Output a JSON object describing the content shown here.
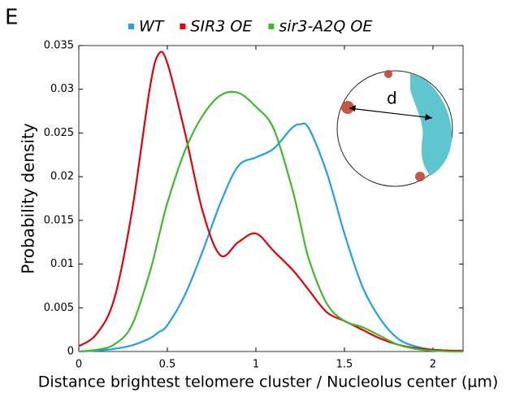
{
  "chart_data": {
    "type": "line",
    "panel_label": "E",
    "xlabel": "Distance brightest telomere cluster / Nucleolus center (µm)",
    "ylabel": "Probability density",
    "annotation": "d",
    "x": [
      0,
      0.1,
      0.2,
      0.3,
      0.4,
      0.45,
      0.5,
      0.6,
      0.7,
      0.8,
      0.9,
      1.0,
      1.1,
      1.2,
      1.25,
      1.3,
      1.4,
      1.5,
      1.6,
      1.7,
      1.8,
      1.9,
      2.0,
      2.1,
      2.17
    ],
    "series": [
      {
        "name": "WT",
        "color": "#1ea0ea",
        "values": [
          0,
          0.0001,
          0.0003,
          0.0007,
          0.0015,
          0.0022,
          0.003,
          0.0065,
          0.0115,
          0.017,
          0.0212,
          0.0222,
          0.0232,
          0.0255,
          0.026,
          0.0255,
          0.0205,
          0.0135,
          0.0075,
          0.0038,
          0.0015,
          0.0006,
          0.0002,
          0.0001,
          0
        ]
      },
      {
        "name": "SIR3 OE",
        "color": "#e3000b",
        "values": [
          0.0006,
          0.002,
          0.006,
          0.016,
          0.03,
          0.034,
          0.033,
          0.025,
          0.016,
          0.011,
          0.0125,
          0.0135,
          0.0115,
          0.0095,
          0.0083,
          0.007,
          0.0045,
          0.0035,
          0.0025,
          0.0015,
          0.0008,
          0.0004,
          0.0002,
          0.0001,
          0.0001
        ]
      },
      {
        "name": "sir3-A2Q OE",
        "color": "#3dbb2a",
        "values": [
          0,
          0.0002,
          0.0008,
          0.003,
          0.009,
          0.013,
          0.017,
          0.023,
          0.027,
          0.0293,
          0.0296,
          0.028,
          0.0255,
          0.019,
          0.0148,
          0.0105,
          0.0055,
          0.0035,
          0.0028,
          0.0018,
          0.0008,
          0.0003,
          0.0001,
          0,
          0
        ]
      }
    ],
    "xlim": [
      0,
      2.17
    ],
    "xticks": [
      0,
      0.5,
      1,
      1.5,
      2
    ],
    "ylim": [
      0,
      0.035
    ],
    "yticks": [
      0,
      0.005,
      0.01,
      0.015,
      0.02,
      0.025,
      0.03,
      0.035
    ]
  }
}
